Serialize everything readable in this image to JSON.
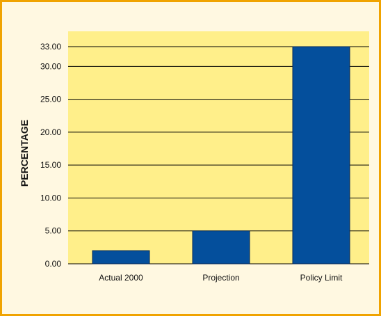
{
  "chart_data": {
    "type": "bar",
    "title": "",
    "xlabel": "",
    "ylabel": "PERCENTAGE",
    "categories": [
      "Actual 2000",
      "Projection",
      "Policy Limit"
    ],
    "values": [
      2.0,
      5.0,
      33.0
    ],
    "ylim": [
      0,
      33
    ],
    "yticks": [
      0,
      5,
      10,
      15,
      20,
      25,
      30,
      33
    ],
    "ytick_labels": [
      "0.00",
      "5.00",
      "10.00",
      "15.00",
      "20.00",
      "25.00",
      "30.00",
      "33.00"
    ],
    "grid": true,
    "legend": "none",
    "colors": {
      "plot_background": "#ffef8a",
      "bar": "#044f9c",
      "frame_border": "#f0a300",
      "frame_background": "#fff8e1"
    }
  }
}
